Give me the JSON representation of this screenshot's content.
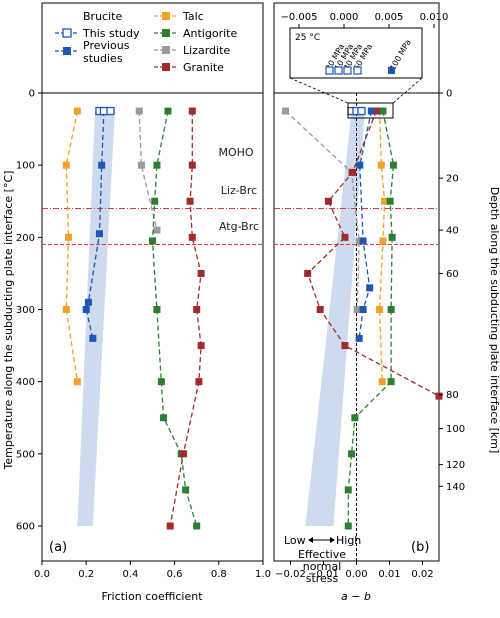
{
  "colors": {
    "brucite": "#1f55b3",
    "talc": "#f5a02a",
    "antigorite": "#2e7d32",
    "lizardite": "#9a9a9a",
    "granite": "#a12a2a",
    "band": "#c6d3ea",
    "moho": "#d43a3a",
    "liz_brc": "#e53935"
  },
  "legend": {
    "brucite": "Brucite",
    "this_study": "This study",
    "previous_studies": "Previous\nstudies",
    "talc": "Talc",
    "antigorite": "Antigorite",
    "lizardite": "Lizardite",
    "granite": "Granite"
  },
  "labels": {
    "moho": "MOHO",
    "liz_brc": "Liz-Brc",
    "atg_brc": "Atg-Brc",
    "panel_a": "(a)",
    "panel_b": "(b)",
    "low": "Low",
    "high": "High",
    "stress1": "Effective",
    "stress2": "normal",
    "stress3": "stress"
  },
  "inset": {
    "ticks": [
      "−0.005",
      "0.000",
      "0.005",
      "0.010"
    ],
    "temp_label": "25 °C",
    "pressures": [
      "20 MPa",
      "10 MPa",
      "40 MPa",
      "60 MPa",
      "100 MPa"
    ]
  },
  "chart_data": [
    {
      "type": "line",
      "panel": "a",
      "xlabel": "Friction coefficient",
      "ylabel": "Temperature along the subducting plate interface [°C]",
      "xlim": [
        0.0,
        1.0
      ],
      "ylim": [
        600,
        0
      ],
      "x_ticks": [
        "0.0",
        "0.2",
        "0.4",
        "0.6",
        "0.8",
        "1.0"
      ],
      "y_ticks": [
        "0",
        "100",
        "200",
        "300",
        "400",
        "500",
        "600"
      ],
      "legend": "top",
      "moho_temperature": 160,
      "liz_brc_temperature": 210,
      "series": [
        {
          "name": "Talc",
          "color_key": "talc",
          "points": [
            [
              0.16,
              25
            ],
            [
              0.11,
              100
            ],
            [
              0.12,
              200
            ],
            [
              0.11,
              300
            ],
            [
              0.16,
              400
            ]
          ]
        },
        {
          "name": "Lizardite",
          "color_key": "lizardite",
          "points": [
            [
              0.44,
              25
            ],
            [
              0.45,
              100
            ],
            [
              0.52,
              190
            ]
          ]
        },
        {
          "name": "Antigorite",
          "color_key": "antigorite",
          "points": [
            [
              0.57,
              25
            ],
            [
              0.52,
              100
            ],
            [
              0.51,
              150
            ],
            [
              0.5,
              205
            ],
            [
              0.52,
              300
            ],
            [
              0.54,
              400
            ],
            [
              0.55,
              450
            ],
            [
              0.63,
              500
            ],
            [
              0.65,
              550
            ],
            [
              0.7,
              600
            ]
          ]
        },
        {
          "name": "Granite",
          "color_key": "granite",
          "points": [
            [
              0.68,
              25
            ],
            [
              0.68,
              100
            ],
            [
              0.67,
              150
            ],
            [
              0.68,
              200
            ],
            [
              0.72,
              250
            ],
            [
              0.7,
              300
            ],
            [
              0.72,
              350
            ],
            [
              0.71,
              400
            ],
            [
              0.64,
              500
            ],
            [
              0.58,
              600
            ]
          ]
        },
        {
          "name": "Previous studies",
          "color_key": "brucite",
          "points": [
            [
              0.28,
              25
            ],
            [
              0.27,
              100
            ],
            [
              0.26,
              195
            ],
            [
              0.21,
              290
            ],
            [
              0.2,
              300
            ],
            [
              0.23,
              340
            ]
          ]
        }
      ],
      "this_study": [
        [
          0.26,
          25
        ],
        [
          0.28,
          25
        ],
        [
          0.31,
          25
        ]
      ],
      "band": [
        [
          0.24,
          25
        ],
        [
          0.33,
          25
        ],
        [
          0.23,
          600
        ],
        [
          0.16,
          600
        ]
      ]
    },
    {
      "type": "line",
      "panel": "b",
      "xlabel": "a − b",
      "ylabel": "Depth along the subducting plate interface [km]",
      "xlim": [
        -0.025,
        0.025
      ],
      "ylim": [
        600,
        0
      ],
      "x_ticks": [
        "−0.02",
        "−0.01",
        "0.00",
        "0.01",
        "0.02"
      ],
      "depth_ticks": [
        {
          "label": "0",
          "t": 0
        },
        {
          "label": "20",
          "t": 118
        },
        {
          "label": "40",
          "t": 190
        },
        {
          "label": "60",
          "t": 250
        },
        {
          "label": "80",
          "t": 418
        },
        {
          "label": "100",
          "t": 465
        },
        {
          "label": "120",
          "t": 515
        },
        {
          "label": "140",
          "t": 545
        }
      ],
      "series": [
        {
          "name": "Lizardite",
          "color_key": "lizardite",
          "points": [
            [
              -0.0215,
              25
            ],
            [
              -0.0015,
              110
            ],
            [
              0.0008,
              205
            ],
            [
              0.0002,
              300
            ]
          ]
        },
        {
          "name": "Talc",
          "color_key": "talc",
          "points": [
            [
              0.007,
              25
            ],
            [
              0.0075,
              100
            ],
            [
              0.0085,
              150
            ],
            [
              0.008,
              205
            ],
            [
              0.007,
              300
            ],
            [
              0.0078,
              400
            ]
          ]
        },
        {
          "name": "Antigorite",
          "color_key": "antigorite",
          "points": [
            [
              0.008,
              25
            ],
            [
              0.0112,
              100
            ],
            [
              0.0102,
              150
            ],
            [
              0.0108,
              200
            ],
            [
              0.0105,
              300
            ],
            [
              0.0105,
              400
            ],
            [
              -0.0005,
              450
            ],
            [
              -0.0015,
              500
            ],
            [
              -0.0025,
              550
            ],
            [
              -0.0025,
              600
            ]
          ]
        },
        {
          "name": "Granite",
          "color_key": "granite",
          "points": [
            [
              0.006,
              25
            ],
            [
              -0.0012,
              110
            ],
            [
              -0.0085,
              150
            ],
            [
              -0.0035,
              200
            ],
            [
              -0.0148,
              250
            ],
            [
              -0.011,
              300
            ],
            [
              -0.0035,
              350
            ],
            [
              0.025,
              420
            ]
          ]
        },
        {
          "name": "Previous studies",
          "color_key": "brucite",
          "points": [
            [
              0.0045,
              25
            ],
            [
              0.001,
              100
            ],
            [
              0.002,
              205
            ],
            [
              0.004,
              270
            ],
            [
              0.002,
              300
            ],
            [
              0.0008,
              340
            ]
          ]
        }
      ],
      "this_study": [
        [
          -0.0015,
          25
        ],
        [
          0.0,
          25
        ],
        [
          0.0015,
          25
        ]
      ],
      "band": [
        [
          -0.0015,
          25
        ],
        [
          0.0025,
          25
        ],
        [
          -0.007,
          600
        ],
        [
          -0.0155,
          600
        ]
      ]
    }
  ]
}
